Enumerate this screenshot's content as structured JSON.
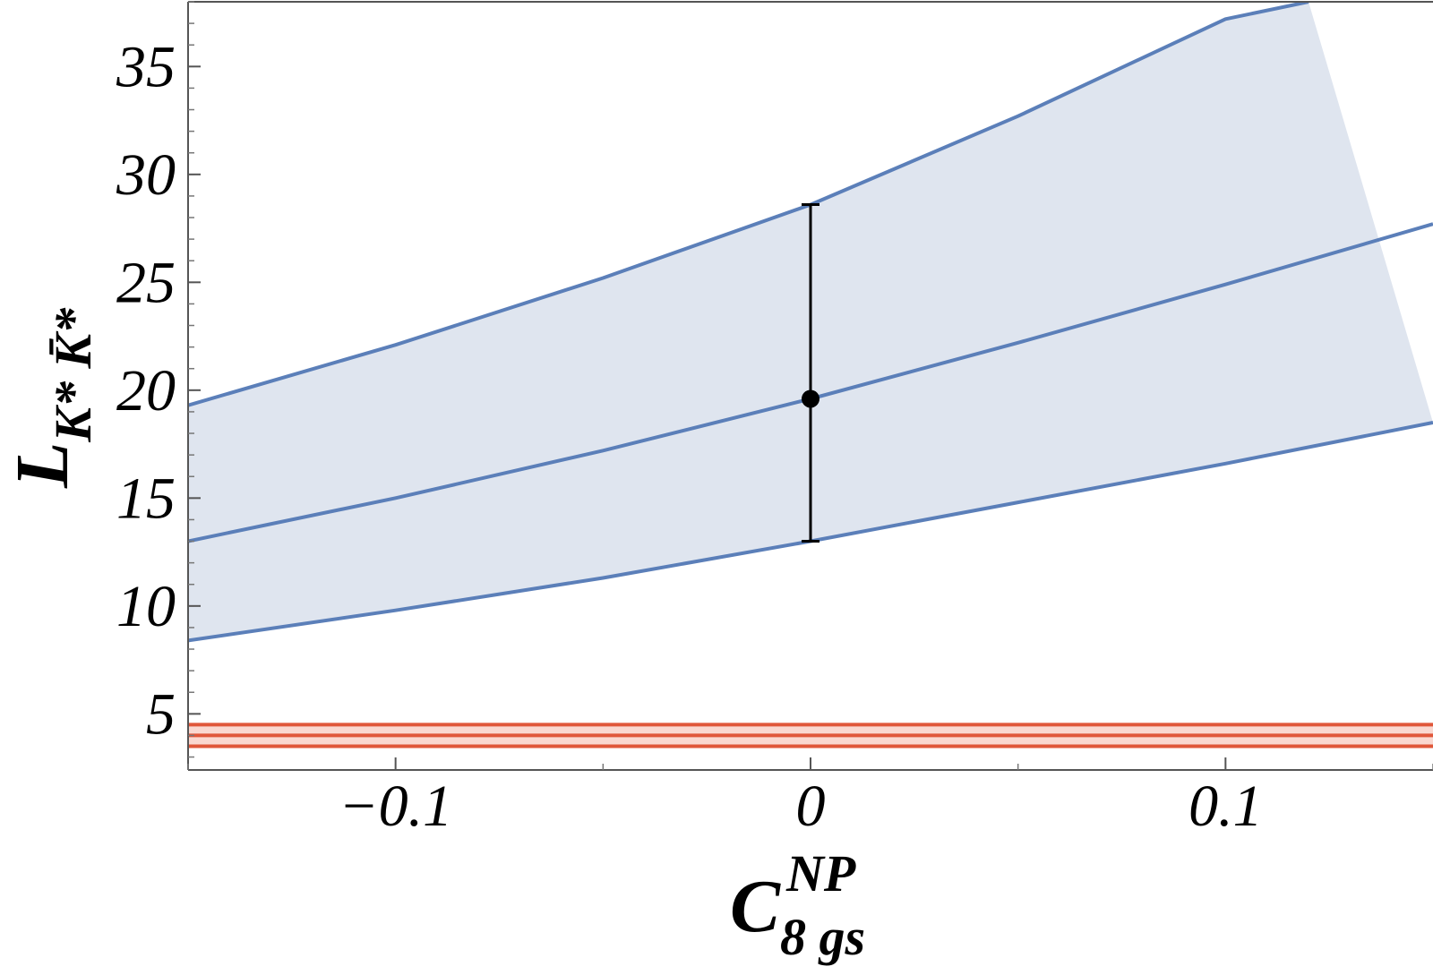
{
  "chart_data": {
    "type": "line",
    "xlabel": {
      "main": "C",
      "sup": "NP",
      "sub": "8 gs"
    },
    "ylabel": {
      "main": "L",
      "sub": "K* K̄*"
    },
    "xlim": [
      -0.15,
      0.15
    ],
    "ylim": [
      2.4,
      38.0
    ],
    "x_ticks": [
      {
        "value": -0.1,
        "label": "−0.1"
      },
      {
        "value": 0,
        "label": "0"
      },
      {
        "value": 0.1,
        "label": "0.1"
      }
    ],
    "y_ticks": [
      {
        "value": 5,
        "label": "5"
      },
      {
        "value": 10,
        "label": "10"
      },
      {
        "value": 15,
        "label": "15"
      },
      {
        "value": 20,
        "label": "20"
      },
      {
        "value": 25,
        "label": "25"
      },
      {
        "value": 30,
        "label": "30"
      },
      {
        "value": 35,
        "label": "35"
      }
    ],
    "y_minor_step": 1,
    "x_minor_step": 0.05,
    "grid": false,
    "series": [
      {
        "role": "theory-band-upper",
        "color": "#5b7fb9",
        "x": [
          -0.15,
          -0.1,
          -0.05,
          0,
          0.05,
          0.1,
          0.12
        ],
        "y": [
          19.3,
          22.1,
          25.2,
          28.6,
          32.7,
          37.2,
          38.0
        ]
      },
      {
        "role": "theory-central",
        "color": "#5b7fb9",
        "x": [
          -0.15,
          -0.1,
          -0.05,
          0,
          0.05,
          0.1,
          0.15
        ],
        "y": [
          13.0,
          15.0,
          17.2,
          19.6,
          22.2,
          24.9,
          27.7
        ]
      },
      {
        "role": "theory-band-lower",
        "color": "#5b7fb9",
        "x": [
          -0.15,
          -0.1,
          -0.05,
          0,
          0.05,
          0.1,
          0.15
        ],
        "y": [
          8.4,
          9.8,
          11.3,
          13.0,
          14.8,
          16.6,
          18.5
        ]
      },
      {
        "role": "experiment-band-upper",
        "color": "#e0573a",
        "x": [
          -0.15,
          0.15
        ],
        "y": [
          4.5,
          4.5
        ]
      },
      {
        "role": "experiment-central",
        "color": "#e0573a",
        "x": [
          -0.15,
          0.15
        ],
        "y": [
          4.0,
          4.0
        ]
      },
      {
        "role": "experiment-band-lower",
        "color": "#e0573a",
        "x": [
          -0.15,
          0.15
        ],
        "y": [
          3.5,
          3.5
        ]
      }
    ],
    "bands": [
      {
        "upper": "theory-band-upper",
        "lower": "theory-band-lower",
        "fill": "#dfe5ef"
      },
      {
        "upper": "experiment-band-upper",
        "lower": "experiment-band-lower",
        "fill": "#fad8d0"
      }
    ],
    "error_point": {
      "x": 0,
      "y": 19.6,
      "y_low": 13.0,
      "y_high": 28.6,
      "color": "#000000"
    }
  }
}
